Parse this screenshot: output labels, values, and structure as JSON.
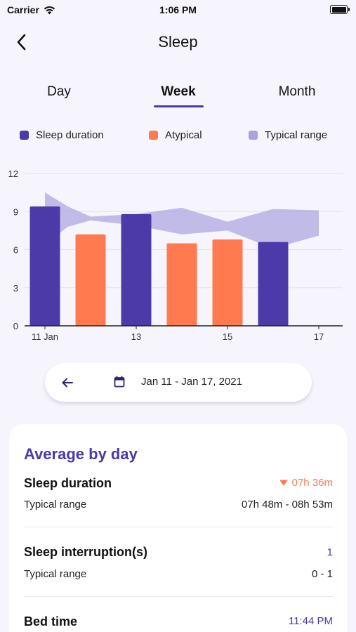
{
  "status_bar": {
    "carrier": "Carrier",
    "time": "1:06 PM"
  },
  "nav": {
    "title": "Sleep",
    "back_icon": "chevron-left-icon"
  },
  "tabs": [
    {
      "label": "Day",
      "selected": false
    },
    {
      "label": "Week",
      "selected": true
    },
    {
      "label": "Month",
      "selected": false
    }
  ],
  "legend": [
    {
      "label": "Sleep duration",
      "color": "#4b3aa7"
    },
    {
      "label": "Atypical",
      "color": "#ff7a4f"
    },
    {
      "label": "Typical range",
      "color": "#aba2dd"
    }
  ],
  "chart_data": {
    "type": "bar",
    "x": [
      11,
      12,
      13,
      14,
      15,
      16,
      17
    ],
    "x_tick_labels": [
      "11 Jan",
      "13",
      "15",
      "17"
    ],
    "x_tick_positions": [
      11,
      13,
      15,
      17
    ],
    "ylim": [
      0,
      12
    ],
    "yticks": [
      "0",
      "3",
      "6",
      "9",
      "12"
    ],
    "grid": true,
    "series": [
      {
        "name": "Sleep duration",
        "values": [
          9.4,
          7.2,
          8.8,
          6.5,
          6.8,
          6.6,
          null
        ],
        "colors": [
          "#4b3aa7",
          "#ff7a4f",
          "#4b3aa7",
          "#ff7a4f",
          "#ff7a4f",
          "#4b3aa7",
          null
        ]
      }
    ],
    "range": {
      "name": "Typical range",
      "x": [
        11,
        11.5,
        12,
        13,
        14,
        15,
        16,
        17
      ],
      "low": [
        6.4,
        7.8,
        8.3,
        7.9,
        7.2,
        7.5,
        6.1,
        7.1
      ],
      "high": [
        10.5,
        9.4,
        8.6,
        8.8,
        9.3,
        8.2,
        9.2,
        9.1
      ]
    }
  },
  "date_range": {
    "label": "Jan 11 - Jan 17, 2021",
    "prev_icon": "arrow-left-icon",
    "calendar_icon": "calendar-icon"
  },
  "summary": {
    "title": "Average by day",
    "sleep_duration": {
      "label": "Sleep duration",
      "value": "07h 36m",
      "value_color": "#ff7a4f",
      "typical_label": "Typical range",
      "typical_value": "07h 48m - 08h 53m"
    },
    "interruptions": {
      "label": "Sleep interruption(s)",
      "value": "1",
      "value_color": "#4b3aa7",
      "typical_label": "Typical range",
      "typical_value": "0 - 1"
    },
    "bed_time": {
      "label": "Bed time",
      "value": "11:44 PM",
      "value_color": "#4b3aa7"
    }
  }
}
